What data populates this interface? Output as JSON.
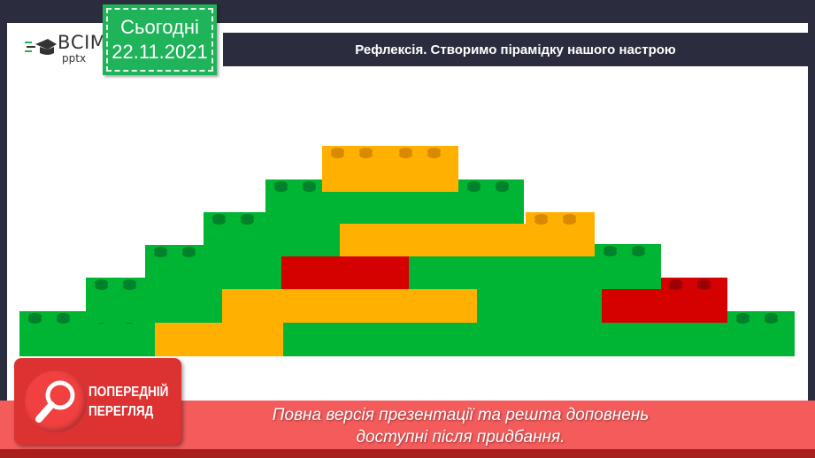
{
  "logo": {
    "main": "ВСІМ",
    "sub": "pptx"
  },
  "date_badge": {
    "label": "Сьогодні",
    "date": "22.11.2021"
  },
  "title": "Рефлексія. Створимо пірамідку нашого настрою",
  "colors": {
    "green": "#00b533",
    "orange": "#ffb000",
    "red": "#d50000",
    "dark": "#2b2d3e",
    "banner": "#f45b5b"
  },
  "preview_badge": {
    "line1": "ПОПЕРЕДНІЙ",
    "line2": "ПЕРЕГЛЯД",
    "icon": "magnifier-icon"
  },
  "banner": {
    "line1": "Повна версія презентації та решта доповнень",
    "line2": "доступні після придбання."
  }
}
